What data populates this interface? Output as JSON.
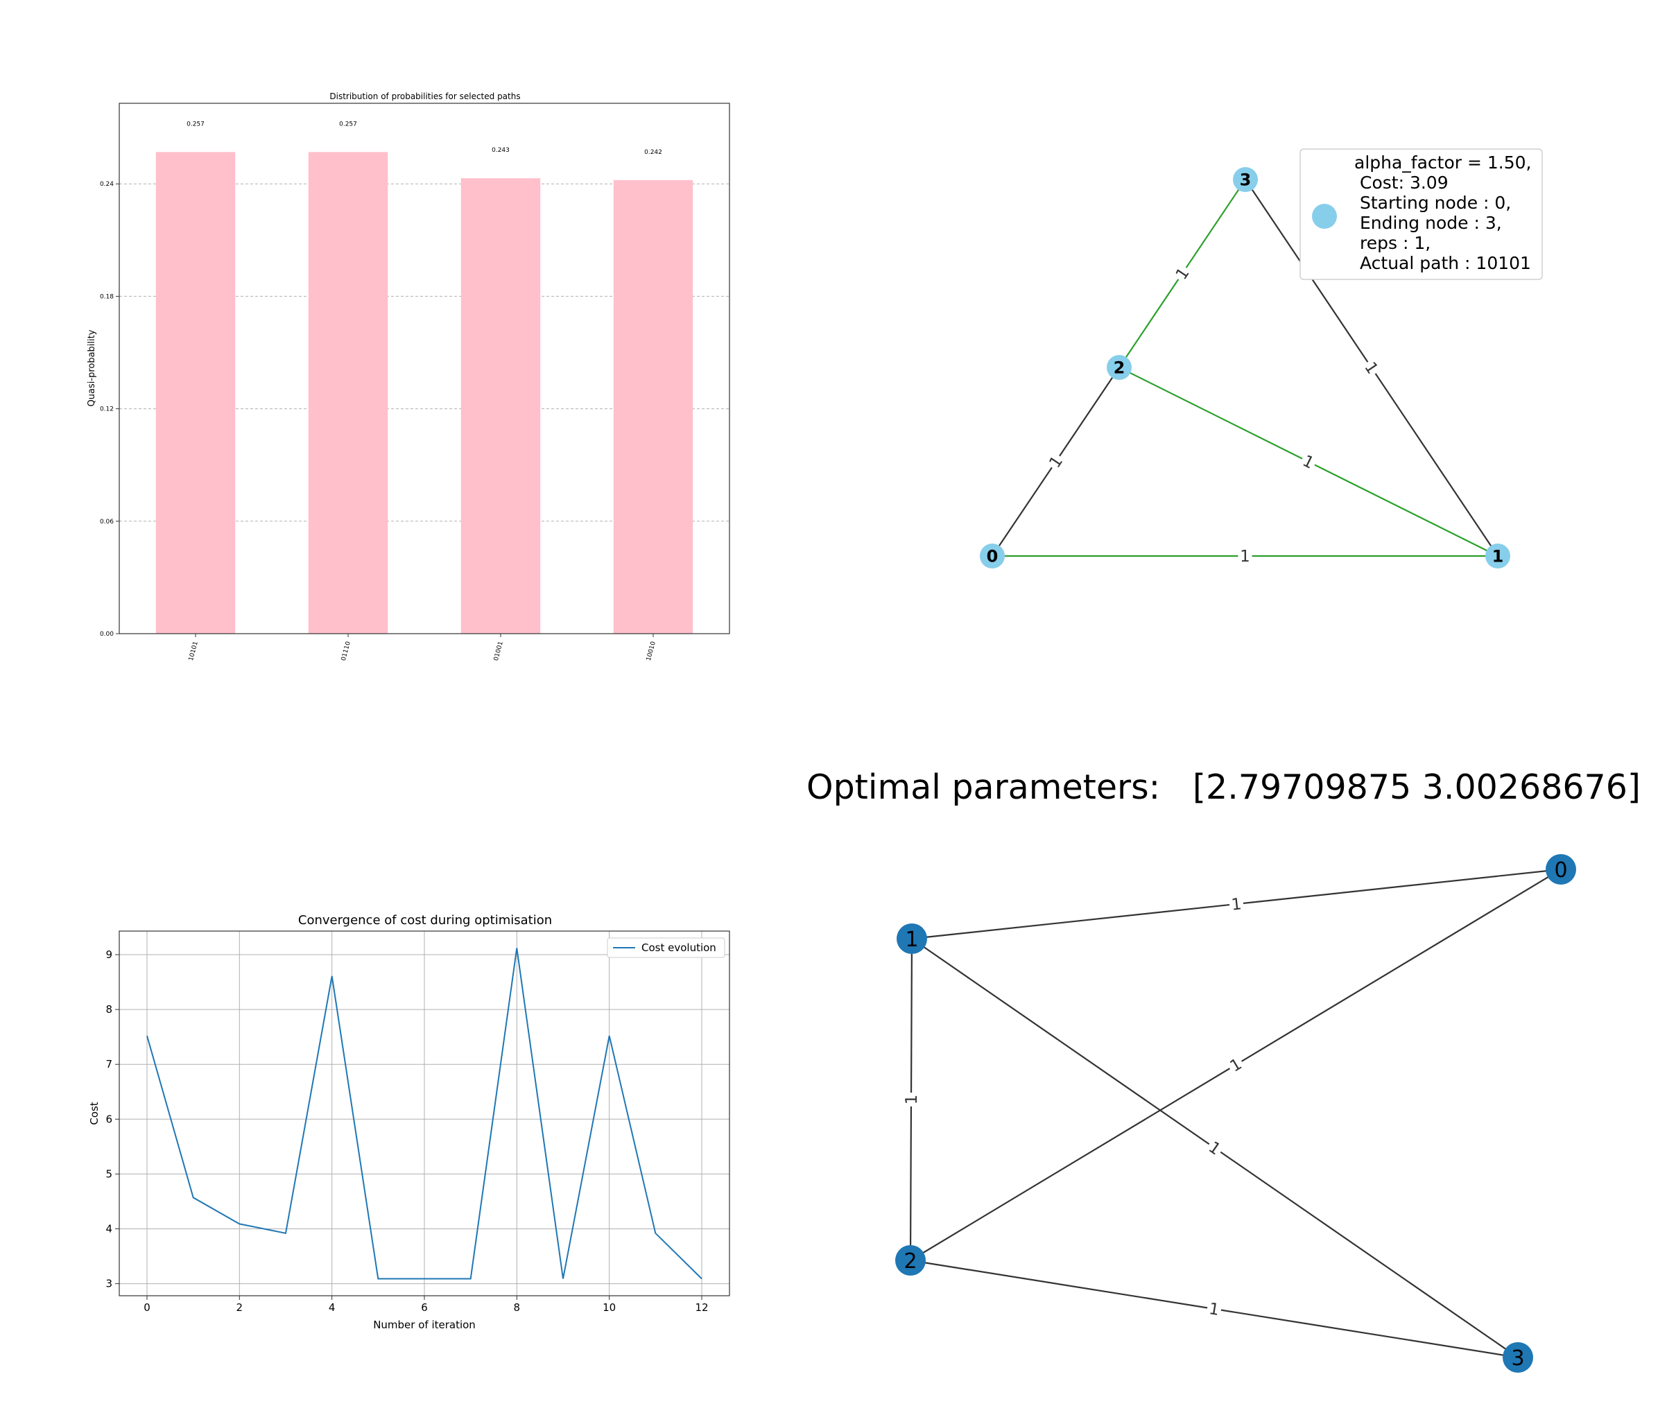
{
  "chart_data": [
    {
      "type": "bar",
      "title": "Distribution of probabilities for selected paths",
      "xlabel": "",
      "ylabel": "Quasi-probability",
      "categories": [
        "10101",
        "01110",
        "01001",
        "10010"
      ],
      "values": [
        0.257,
        0.257,
        0.243,
        0.242
      ],
      "value_labels": [
        "0.257",
        "0.257",
        "0.243",
        "0.242"
      ],
      "ylim": [
        0,
        0.283
      ],
      "yticks": [
        0.0,
        0.06,
        0.12,
        0.18,
        0.24
      ],
      "ytick_labels": [
        "0.00",
        "0.06",
        "0.12",
        "0.18",
        "0.24"
      ],
      "grid": "horizontal dashed",
      "bar_color": "#ffc0cb"
    },
    {
      "type": "line",
      "title": "Convergence of cost during optimisation",
      "xlabel": "Number of iteration",
      "ylabel": "Cost",
      "x": [
        0,
        1,
        2,
        3,
        4,
        5,
        6,
        7,
        8,
        9,
        10,
        11,
        12
      ],
      "series": [
        {
          "name": "Cost evolution",
          "values": [
            7.52,
            4.57,
            4.09,
            3.92,
            8.61,
            3.09,
            3.09,
            3.09,
            9.12,
            3.09,
            7.52,
            3.92,
            3.09
          ]
        }
      ],
      "xlim": [
        -0.6,
        12.6
      ],
      "ylim": [
        2.78,
        9.43
      ],
      "xticks": [
        0,
        2,
        4,
        6,
        8,
        10,
        12
      ],
      "yticks": [
        3,
        4,
        5,
        6,
        7,
        8,
        9
      ],
      "grid": true,
      "legend": "top-right",
      "line_color": "#1f77b4"
    }
  ],
  "graph_top": {
    "nodes": [
      {
        "id": "0",
        "label": "0"
      },
      {
        "id": "1",
        "label": "1"
      },
      {
        "id": "2",
        "label": "2"
      },
      {
        "id": "3",
        "label": "3"
      }
    ],
    "edges": [
      {
        "from": "0",
        "to": "1",
        "weight": "1",
        "color": "#2ca02c"
      },
      {
        "from": "0",
        "to": "2",
        "weight": "1",
        "color": "#333333"
      },
      {
        "from": "1",
        "to": "2",
        "weight": "1",
        "color": "#2ca02c"
      },
      {
        "from": "2",
        "to": "3",
        "weight": "1",
        "color": "#2ca02c"
      },
      {
        "from": "1",
        "to": "3",
        "weight": "1",
        "color": "#333333"
      }
    ],
    "node_color": "#87ceeb",
    "legend_lines": [
      "alpha_factor = 1.50,",
      "Cost: 3.09",
      "Starting node : 0,",
      "Ending node : 3,",
      "reps : 1,",
      "Actual path : 10101"
    ]
  },
  "optimal_label": "Optimal parameters:   [2.79709875 3.00268676]",
  "graph_bottom": {
    "nodes": [
      {
        "id": "0",
        "label": "0"
      },
      {
        "id": "1",
        "label": "1"
      },
      {
        "id": "2",
        "label": "2"
      },
      {
        "id": "3",
        "label": "3"
      }
    ],
    "edges": [
      {
        "from": "1",
        "to": "0",
        "weight": "1"
      },
      {
        "from": "1",
        "to": "2",
        "weight": "1"
      },
      {
        "from": "1",
        "to": "3",
        "weight": "1"
      },
      {
        "from": "2",
        "to": "0",
        "weight": "1"
      },
      {
        "from": "2",
        "to": "3",
        "weight": "1"
      }
    ],
    "node_color": "#1f77b4",
    "edge_color": "#333333"
  }
}
